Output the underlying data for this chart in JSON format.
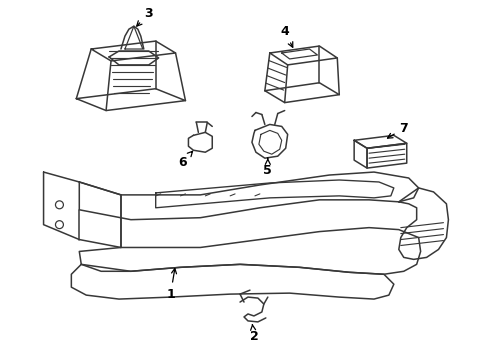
{
  "background_color": "#ffffff",
  "line_color": "#383838",
  "line_width": 1.1,
  "label_color": "#000000",
  "label_fontsize": 9,
  "figsize": [
    4.9,
    3.6
  ],
  "dpi": 100,
  "parts": {
    "part1_label": "1",
    "part2_label": "2",
    "part3_label": "3",
    "part4_label": "4",
    "part5_label": "5",
    "part6_label": "6",
    "part7_label": "7"
  }
}
